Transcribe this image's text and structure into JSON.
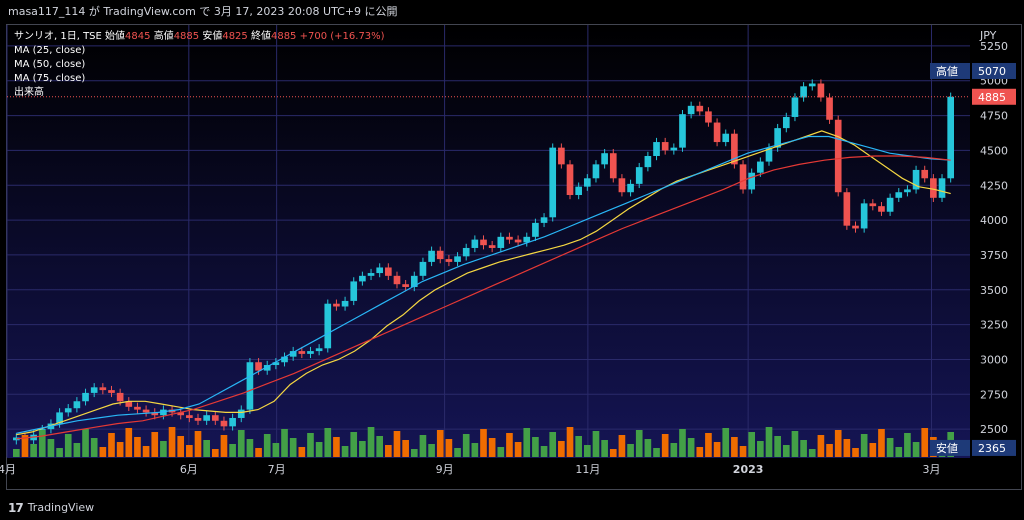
{
  "header": {
    "title": "masa117_114 が TradingView.com で 3月 17, 2023 20:08 UTC+9 に公開"
  },
  "legend": {
    "symbol": "サンリオ, 1日, TSE",
    "open_label": "始値",
    "open": "4845",
    "high_label": "高値",
    "high": "4885",
    "low_label": "安値",
    "low": "4825",
    "close_label": "終値",
    "close": "4885",
    "change": "+700 (+16.73%)",
    "ma1": "MA (25, close)",
    "ma2": "MA (50, close)",
    "ma3": "MA (75, close)",
    "volume": "出来高"
  },
  "footer": {
    "brand": "TradingView"
  },
  "colors": {
    "background": "#0b0b3a",
    "up": "#26c6da",
    "down": "#ef5350",
    "ma25": "#f5d742",
    "ma50": "#29b6f6",
    "ma75": "#e53935",
    "vol_up": "#43a047",
    "vol_down": "#ef6c00"
  },
  "chart_data": {
    "type": "candlestick",
    "y_axis_unit": "JPY",
    "ylim": [
      2300,
      5400
    ],
    "y_ticks": [
      2500,
      2750,
      3000,
      3250,
      3500,
      3750,
      4000,
      4250,
      4500,
      4750,
      5000,
      5250
    ],
    "x_labels": [
      "4月",
      "6月",
      "7月",
      "9月",
      "11月",
      "2023",
      "3月"
    ],
    "x_label_positions": [
      0,
      0.236,
      0.35,
      0.568,
      0.754,
      0.962,
      1.2
    ],
    "price_labels": [
      {
        "label": "高値",
        "value": "5070"
      },
      {
        "label": "",
        "value": "4885"
      },
      {
        "label": "安値",
        "value": "2365"
      }
    ],
    "series": [
      {
        "name": "サンリオ",
        "values": [
          2440,
          2420,
          2460,
          2500,
          2540,
          2620,
          2650,
          2700,
          2760,
          2800,
          2780,
          2760,
          2700,
          2660,
          2640,
          2620,
          2600,
          2640,
          2620,
          2600,
          2580,
          2560,
          2600,
          2560,
          2520,
          2580,
          2640,
          2980,
          2920,
          2960,
          2980,
          3020,
          3060,
          3040,
          3060,
          3080,
          3400,
          3380,
          3420,
          3560,
          3600,
          3620,
          3660,
          3600,
          3540,
          3520,
          3600,
          3700,
          3780,
          3720,
          3700,
          3740,
          3800,
          3860,
          3820,
          3800,
          3880,
          3860,
          3840,
          3880,
          3980,
          4020,
          4520,
          4400,
          4180,
          4240,
          4300,
          4400,
          4480,
          4300,
          4200,
          4260,
          4380,
          4460,
          4560,
          4500,
          4520,
          4760,
          4820,
          4780,
          4700,
          4560,
          4620,
          4400,
          4220,
          4340,
          4420,
          4520,
          4660,
          4740,
          4880,
          4960,
          4980,
          4880,
          4720,
          4200,
          3960,
          3940,
          4120,
          4100,
          4060,
          4160,
          4200,
          4220,
          4360,
          4300,
          4160,
          4300,
          4885
        ]
      },
      {
        "name": "MA (25, close)",
        "values": [
          2460,
          2480,
          2520,
          2560,
          2600,
          2640,
          2680,
          2700,
          2700,
          2680,
          2660,
          2640,
          2630,
          2620,
          2620,
          2640,
          2700,
          2820,
          2900,
          2960,
          3000,
          3060,
          3140,
          3240,
          3320,
          3420,
          3500,
          3560,
          3620,
          3660,
          3700,
          3730,
          3760,
          3790,
          3820,
          3860,
          3920,
          4000,
          4080,
          4150,
          4220,
          4280,
          4320,
          4360,
          4400,
          4440,
          4480,
          4520,
          4560,
          4600,
          4640,
          4600,
          4540,
          4460,
          4380,
          4300,
          4240,
          4220,
          4190
        ]
      },
      {
        "name": "MA (50, close)",
        "values": [
          2470,
          2500,
          2530,
          2560,
          2580,
          2600,
          2610,
          2620,
          2640,
          2680,
          2760,
          2840,
          2920,
          3000,
          3080,
          3160,
          3240,
          3320,
          3400,
          3480,
          3560,
          3620,
          3680,
          3730,
          3780,
          3830,
          3880,
          3940,
          4000,
          4060,
          4120,
          4180,
          4240,
          4300,
          4360,
          4420,
          4480,
          4520,
          4560,
          4600,
          4600,
          4560,
          4520,
          4480,
          4460,
          4440,
          4430
        ]
      },
      {
        "name": "MA (75, close)",
        "values": [
          2430,
          2450,
          2480,
          2510,
          2540,
          2560,
          2600,
          2640,
          2700,
          2760,
          2830,
          2900,
          2980,
          3060,
          3140,
          3220,
          3300,
          3380,
          3460,
          3540,
          3620,
          3700,
          3780,
          3860,
          3940,
          4010,
          4080,
          4150,
          4220,
          4300,
          4360,
          4400,
          4430,
          4450,
          4460,
          4460,
          4450,
          4430
        ]
      }
    ]
  }
}
